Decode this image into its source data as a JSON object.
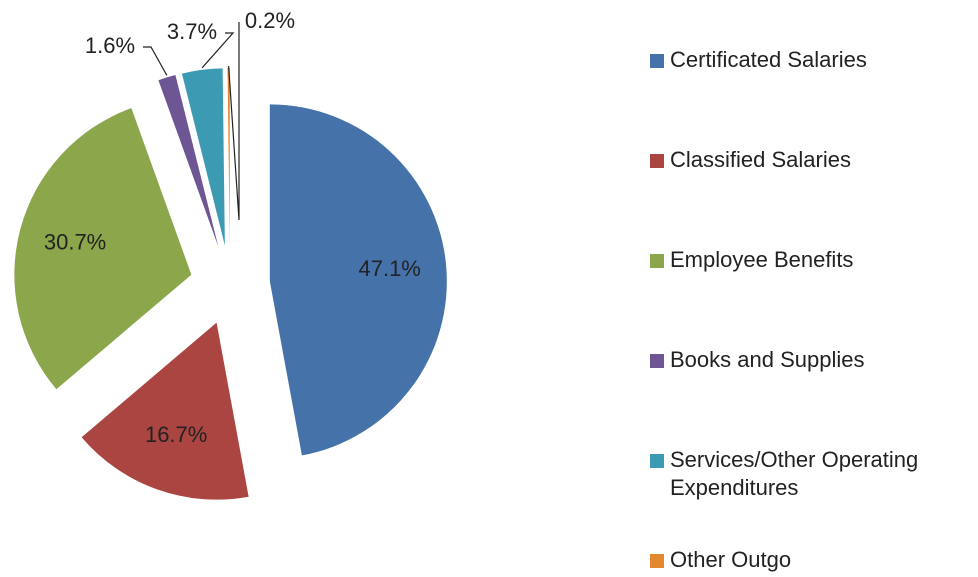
{
  "chart_data": {
    "type": "pie",
    "categories": [
      "Certificated Salaries",
      "Classified Salaries",
      "Employee Benefits",
      "Books and Supplies",
      "Services/Other Operating Expenditures",
      "Other Outgo"
    ],
    "values": [
      47.1,
      16.7,
      30.7,
      1.6,
      3.7,
      0.2
    ],
    "value_labels": [
      "47.1%",
      "16.7%",
      "30.7%",
      "1.6%",
      "3.7%",
      "0.2%"
    ],
    "colors": [
      "#4672aa",
      "#aa4542",
      "#8ca64c",
      "#6e5594",
      "#3c9bb3",
      "#e2892f"
    ],
    "legend": "right"
  }
}
